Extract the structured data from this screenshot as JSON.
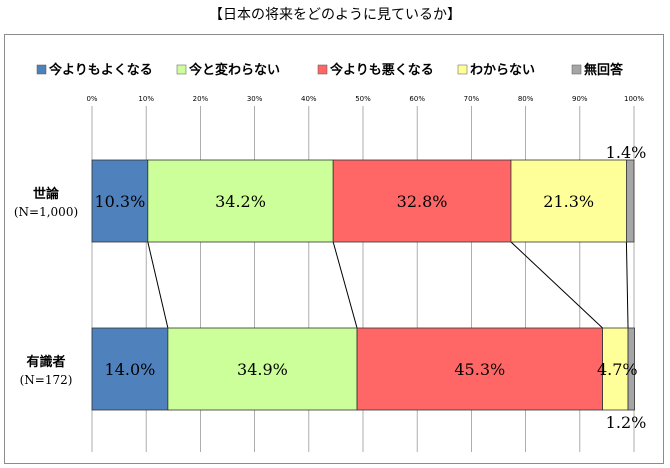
{
  "title": "【日本の将来をどのように見ているか】",
  "chart_data": {
    "type": "bar",
    "orientation": "horizontal",
    "stacked": true,
    "percent": true,
    "legend_position": "top",
    "xlim": [
      0,
      100
    ],
    "xticks": [
      "0%",
      "10%",
      "20%",
      "30%",
      "40%",
      "50%",
      "60%",
      "70%",
      "80%",
      "90%",
      "100%"
    ],
    "grid": true,
    "categories": [
      {
        "label": "世論",
        "sublabel": "(N=1,000)"
      },
      {
        "label": "有識者",
        "sublabel": "(N=172)"
      }
    ],
    "series": [
      {
        "name": "今よりもよくなる",
        "color": "#4f81bd",
        "values": [
          10.3,
          14.0
        ],
        "labels": [
          "10.3%",
          "14.0%"
        ]
      },
      {
        "name": "今と変わらない",
        "color": "#ccff99",
        "values": [
          34.2,
          34.9
        ],
        "labels": [
          "34.2%",
          "34.9%"
        ]
      },
      {
        "name": "今よりも悪くなる",
        "color": "#ff6666",
        "values": [
          32.8,
          45.3
        ],
        "labels": [
          "32.8%",
          "45.3%"
        ]
      },
      {
        "name": "わからない",
        "color": "#ffff99",
        "values": [
          21.3,
          4.7
        ],
        "labels": [
          "21.3%",
          "4.7%"
        ]
      },
      {
        "name": "無回答",
        "color": "#a6a6a6",
        "values": [
          1.4,
          1.2
        ],
        "labels": [
          "1.4%",
          "1.2%"
        ]
      }
    ]
  }
}
